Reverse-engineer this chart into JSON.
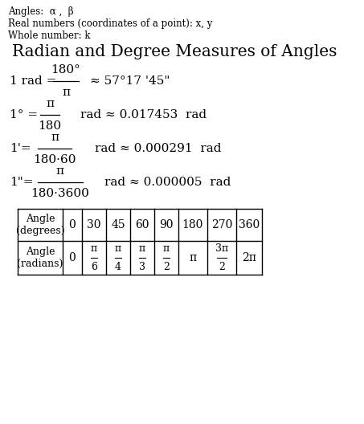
{
  "bg_color": "#ffffff",
  "text_color": "#000000",
  "header_lines": [
    "Angles:  α ,  β",
    "Real numbers (coordinates of a point): x, y",
    "Whole number: k"
  ],
  "title": "Radian and Degree Measures of Angles",
  "formula1_lhs": "1 rad =",
  "formula1_num": "180°",
  "formula1_denom": "π",
  "formula1_approx": "≈ 57°17 '45\"",
  "formula2_lhs": "1° =",
  "formula2_num": "π",
  "formula2_denom": "180",
  "formula2_approx": "rad ≈ 0.017453  rad",
  "formula3_lhs": "1'=",
  "formula3_num": "π",
  "formula3_denom": "180·60",
  "formula3_approx": "rad ≈ 0.000291  rad",
  "formula4_lhs": "1\"=",
  "formula4_num": "π",
  "formula4_denom": "180·3600",
  "formula4_approx": "rad ≈ 0.000005  rad",
  "deg_values": [
    "0",
    "30",
    "45",
    "60",
    "90",
    "180",
    "270",
    "360"
  ],
  "table_row1_label": "Angle\n(degrees)",
  "table_row2_label": "Angle\n(radians)"
}
